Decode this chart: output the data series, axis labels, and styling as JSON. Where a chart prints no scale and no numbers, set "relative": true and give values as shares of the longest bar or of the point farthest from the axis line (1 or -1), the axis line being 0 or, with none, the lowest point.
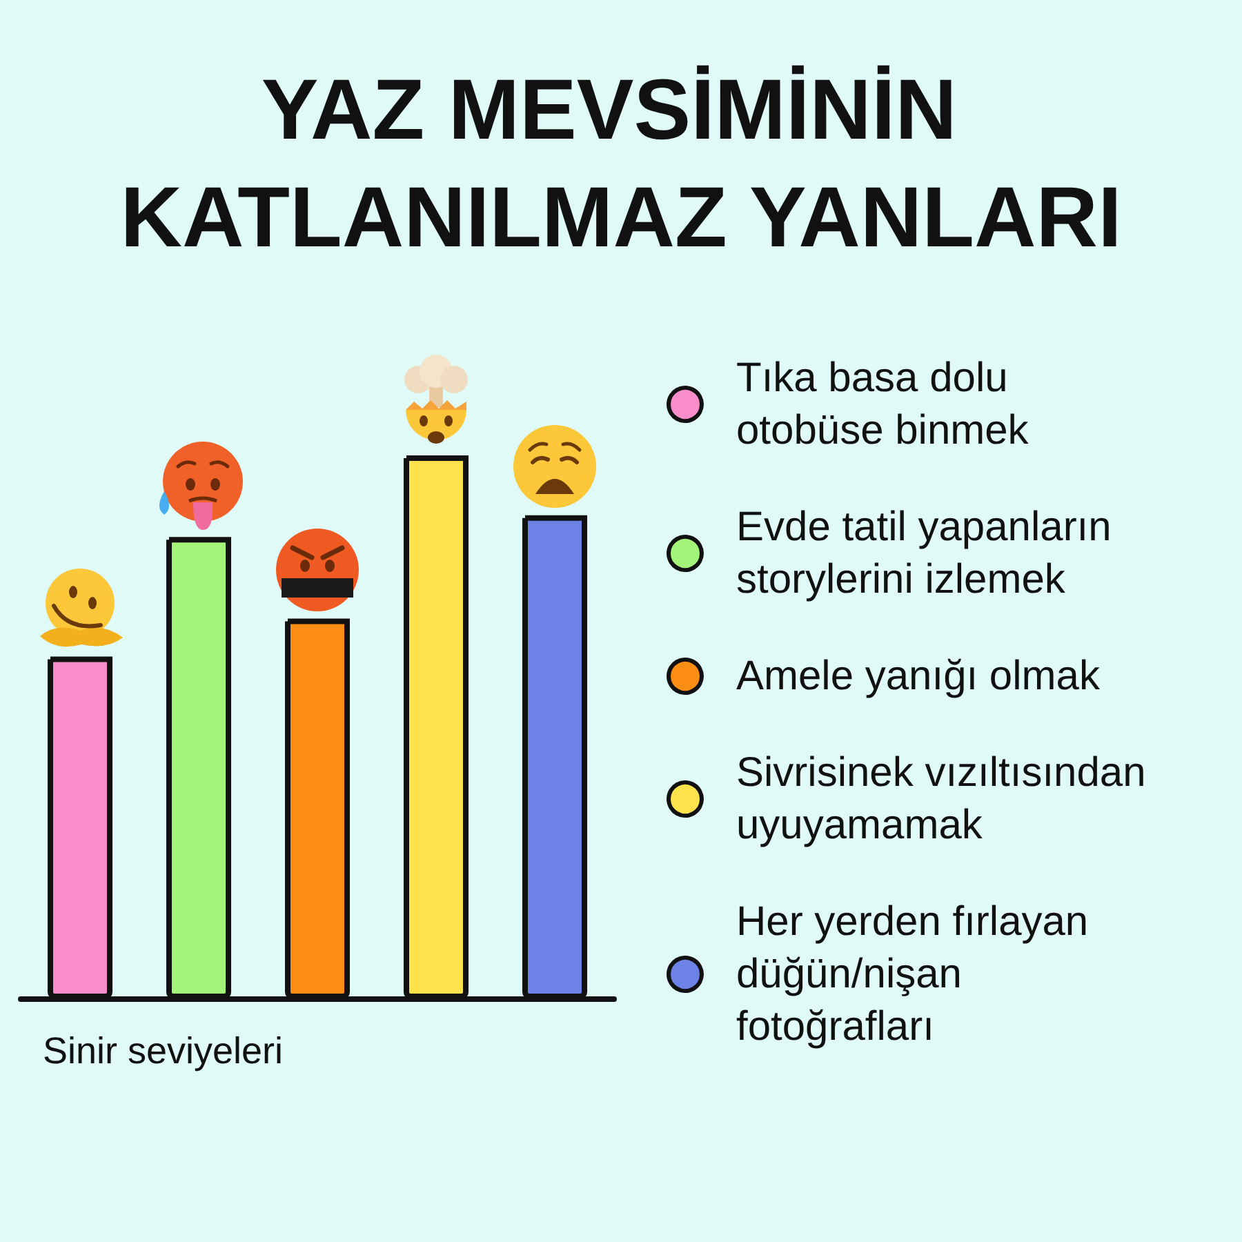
{
  "chart_data": {
    "type": "bar",
    "title": "YAZ MEVSİMİNİN KATLANILMAZ YANLARI",
    "xlabel": "Sinir seviyeleri",
    "categories": [
      null,
      null,
      null,
      null,
      null
    ],
    "relative": true,
    "stacked": true,
    "legend": "right",
    "series": [
      {
        "name": "Tıka basa dolu otobüse binmek",
        "color": "#f98ccb",
        "values": [
          0.63,
          null,
          null,
          null,
          null
        ]
      },
      {
        "name": "Evde tatil yapanların storylerini izlemek",
        "color": "#a3f57a",
        "values": [
          null,
          0.85,
          null,
          null,
          null
        ]
      },
      {
        "name": "Amele yanığı olmak",
        "color": "#fb8c14",
        "values": [
          null,
          null,
          0.7,
          null,
          null
        ]
      },
      {
        "name": "Sivrisinek vızıltısından uyuyamamak",
        "color": "#fde24c",
        "values": [
          null,
          null,
          null,
          1,
          null
        ]
      },
      {
        "name": "Her yerden fırlayan düğün/nişan fotoğrafları",
        "color": "#6c82e6",
        "values": [
          null,
          null,
          null,
          null,
          0.89
        ]
      }
    ]
  }
}
